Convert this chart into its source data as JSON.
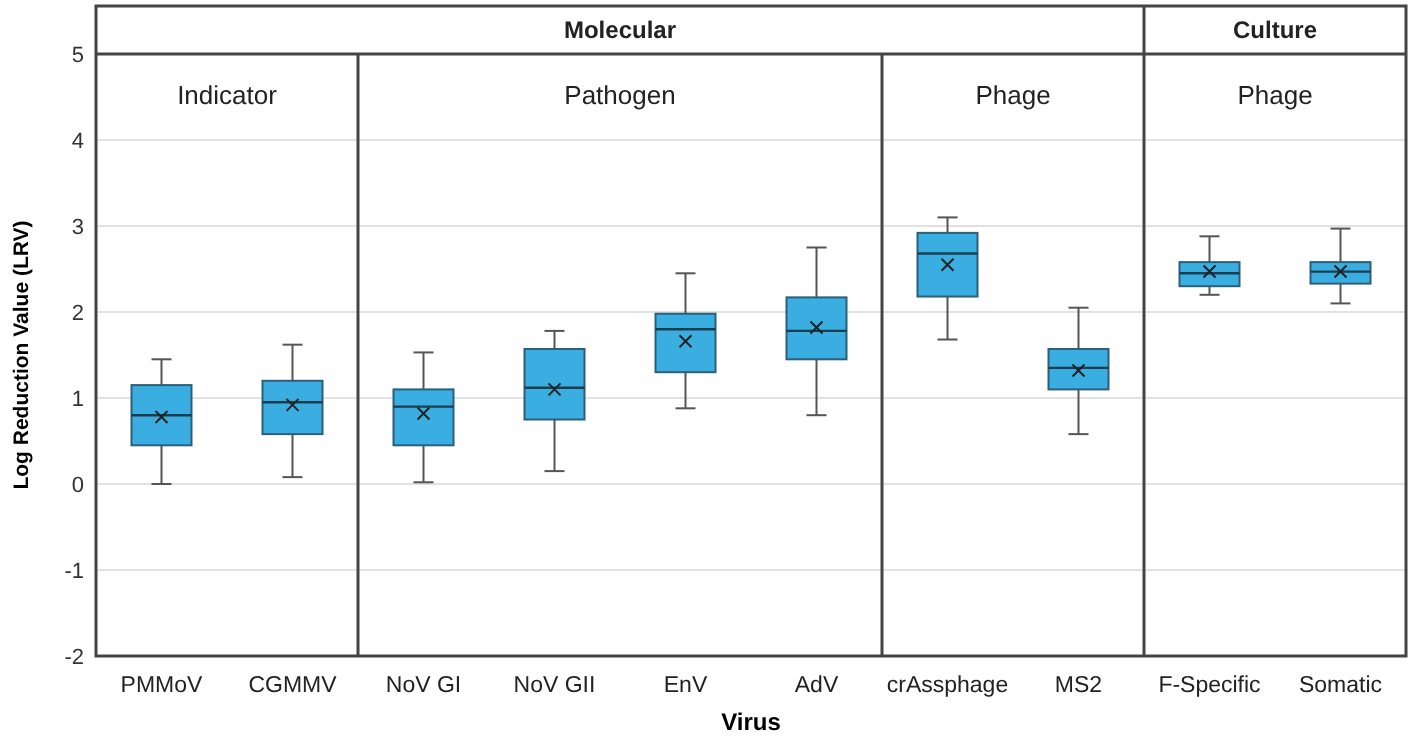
{
  "chart_data": {
    "type": "box",
    "xlabel": "Virus",
    "ylabel": "Log Reduction Value (LRV)",
    "categories": [
      "PMMoV",
      "CGMMV",
      "NoV GI",
      "NoV GII",
      "EnV",
      "AdV",
      "crAssphage",
      "MS2",
      "F-Specific",
      "Somatic"
    ],
    "color": "#3aaee0",
    "ylim": [
      -2,
      5
    ],
    "yticks": [
      -2,
      -1,
      0,
      1,
      2,
      3,
      4,
      5
    ],
    "grid": "y",
    "annotations": [
      "Molecular",
      "Culture",
      "Indicator",
      "Pathogen",
      "Phage",
      "Phage"
    ],
    "boxes": [
      {
        "low": 0,
        "q1": 0.45,
        "median": 0.8,
        "q3": 1.15,
        "high": 1.45,
        "mean": 0.78
      },
      {
        "low": 0.08,
        "q1": 0.58,
        "median": 0.95,
        "q3": 1.2,
        "high": 1.62,
        "mean": 0.92
      },
      {
        "low": 0.02,
        "q1": 0.45,
        "median": 0.9,
        "q3": 1.1,
        "high": 1.53,
        "mean": 0.82
      },
      {
        "low": 0.15,
        "q1": 0.75,
        "median": 1.12,
        "q3": 1.57,
        "high": 1.78,
        "mean": 1.1
      },
      {
        "low": 0.88,
        "q1": 1.3,
        "median": 1.8,
        "q3": 1.98,
        "high": 2.45,
        "mean": 1.66
      },
      {
        "low": 0.8,
        "q1": 1.45,
        "median": 1.78,
        "q3": 2.17,
        "high": 2.75,
        "mean": 1.82
      },
      {
        "low": 1.68,
        "q1": 2.18,
        "median": 2.68,
        "q3": 2.92,
        "high": 3.1,
        "mean": 2.55
      },
      {
        "low": 0.58,
        "q1": 1.1,
        "median": 1.35,
        "q3": 1.57,
        "high": 2.05,
        "mean": 1.32
      },
      {
        "low": 2.2,
        "q1": 2.3,
        "median": 2.45,
        "q3": 2.58,
        "high": 2.88,
        "mean": 2.47
      },
      {
        "low": 2.1,
        "q1": 2.33,
        "median": 2.47,
        "q3": 2.58,
        "high": 2.97,
        "mean": 2.47
      }
    ]
  }
}
